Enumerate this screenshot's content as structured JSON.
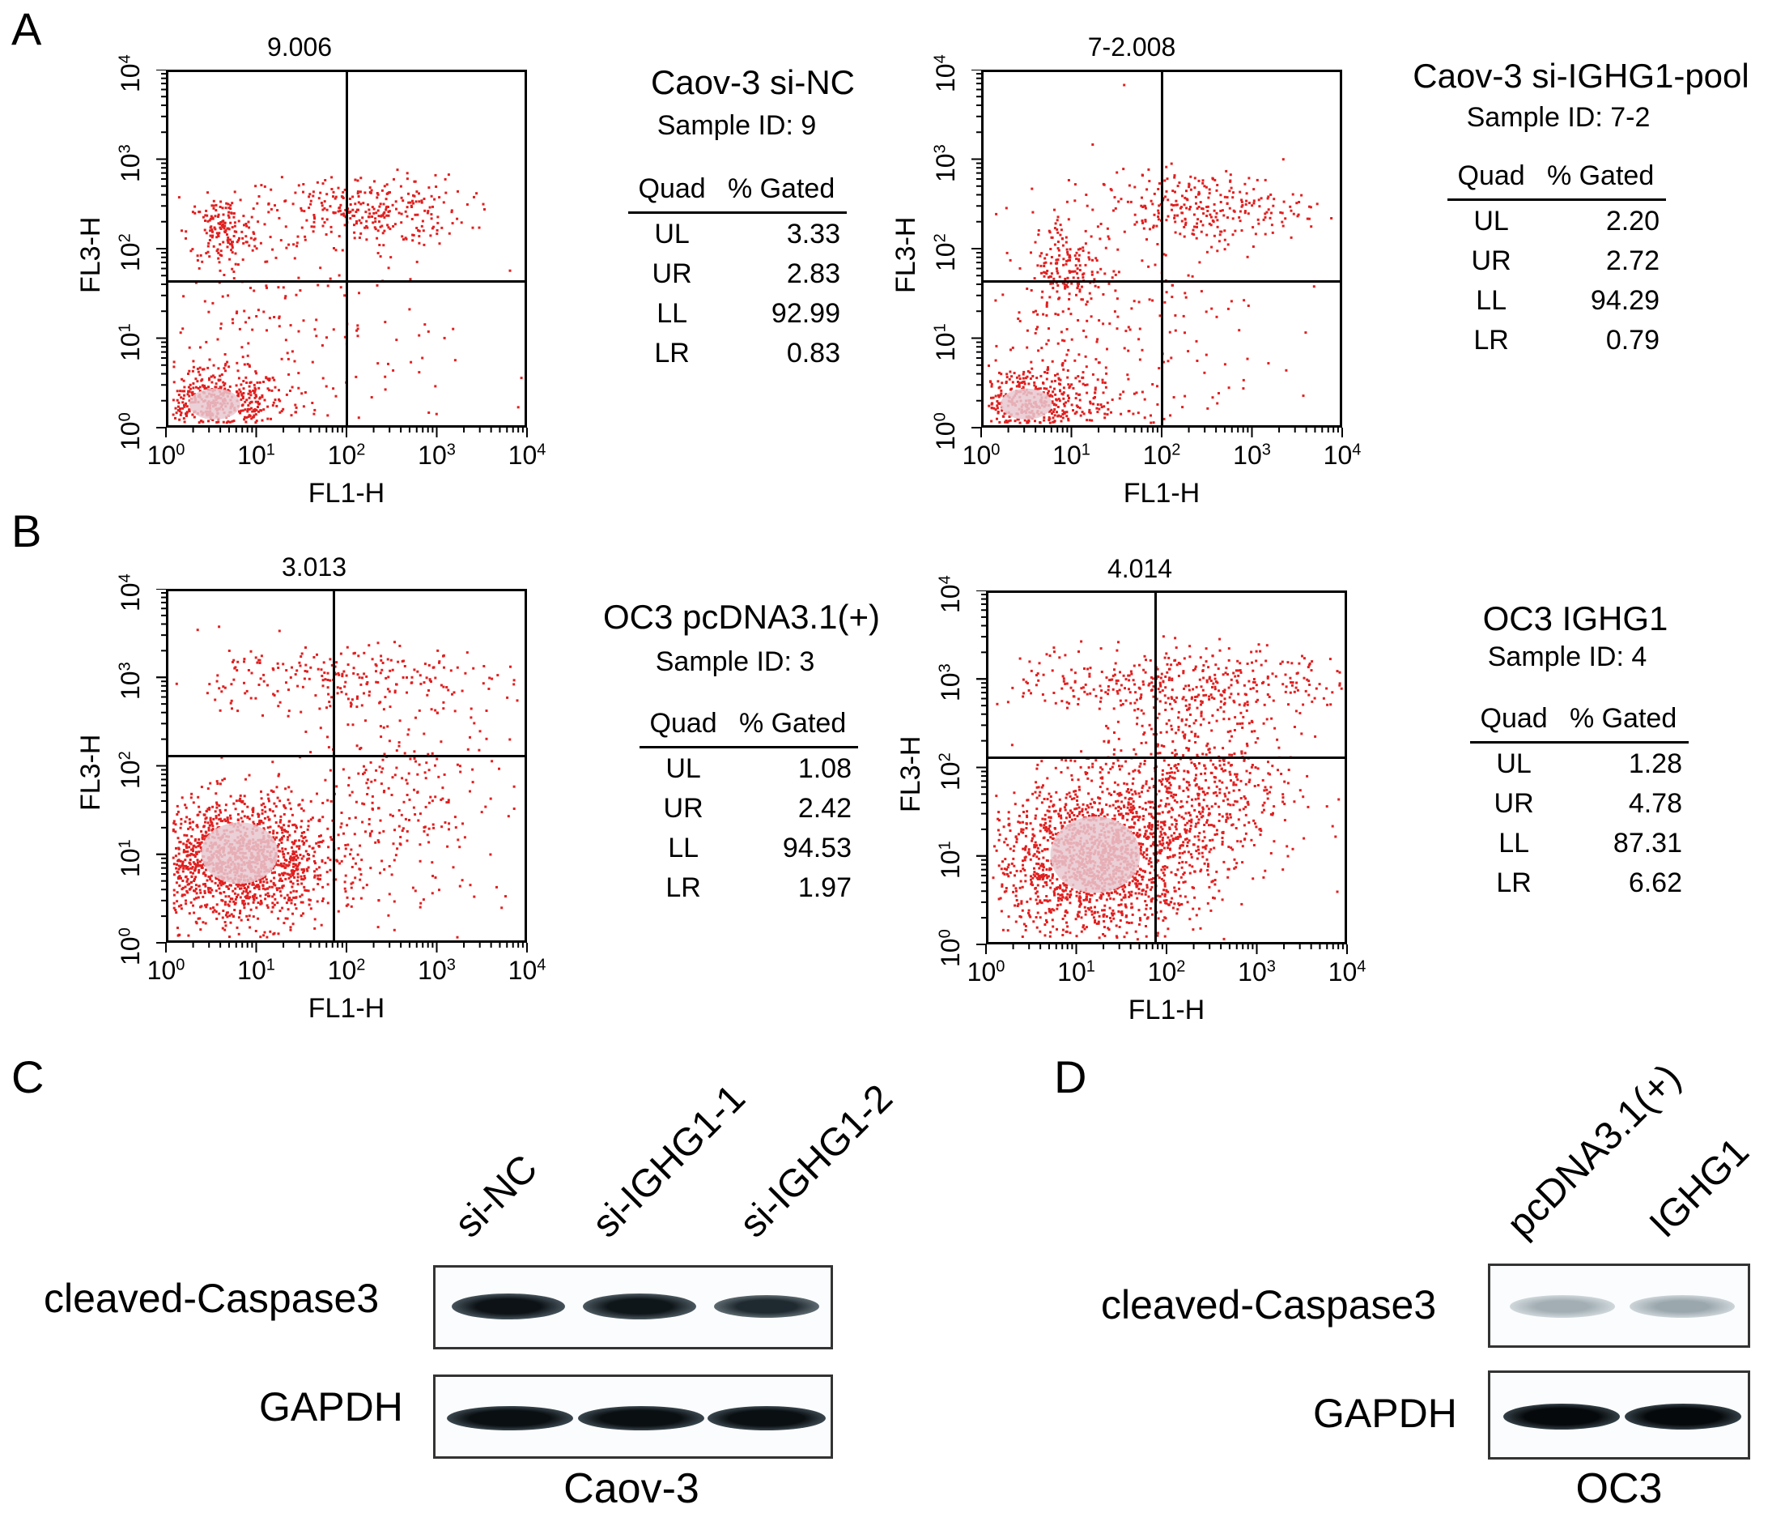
{
  "panels": {
    "A": {
      "letter": "A",
      "left": {
        "title": "9.006",
        "x_axis": "FL1-H",
        "y_axis": "FL3-H",
        "sample_name": "Caov-3 si-NC",
        "sample_id": "Sample ID: 9",
        "table_header": [
          "Quad",
          "% Gated"
        ],
        "rows": [
          {
            "quad": "UL",
            "value": "3.33"
          },
          {
            "quad": "UR",
            "value": "2.83"
          },
          {
            "quad": "LL",
            "value": "92.99"
          },
          {
            "quad": "LR",
            "value": "0.83"
          }
        ]
      },
      "right": {
        "title": "7-2.008",
        "x_axis": "FL1-H",
        "y_axis": "FL3-H",
        "sample_name": "Caov-3 si-IGHG1-pool",
        "sample_id": "Sample ID: 7-2",
        "table_header": [
          "Quad",
          "% Gated"
        ],
        "rows": [
          {
            "quad": "UL",
            "value": "2.20"
          },
          {
            "quad": "UR",
            "value": "2.72"
          },
          {
            "quad": "LL",
            "value": "94.29"
          },
          {
            "quad": "LR",
            "value": "0.79"
          }
        ]
      }
    },
    "B": {
      "letter": "B",
      "left": {
        "title": "3.013",
        "x_axis": "FL1-H",
        "y_axis": "FL3-H",
        "sample_name": "OC3 pcDNA3.1(+)",
        "sample_id": "Sample ID: 3",
        "table_header": [
          "Quad",
          "% Gated"
        ],
        "rows": [
          {
            "quad": "UL",
            "value": "1.08"
          },
          {
            "quad": "UR",
            "value": "2.42"
          },
          {
            "quad": "LL",
            "value": "94.53"
          },
          {
            "quad": "LR",
            "value": "1.97"
          }
        ]
      },
      "right": {
        "title": "4.014",
        "x_axis": "FL1-H",
        "y_axis": "FL3-H",
        "sample_name": "OC3 IGHG1",
        "sample_id": "Sample ID: 4",
        "table_header": [
          "Quad",
          "% Gated"
        ],
        "rows": [
          {
            "quad": "UL",
            "value": "1.28"
          },
          {
            "quad": "UR",
            "value": "4.78"
          },
          {
            "quad": "LL",
            "value": "87.31"
          },
          {
            "quad": "LR",
            "value": "6.62"
          }
        ]
      }
    },
    "C": {
      "letter": "C",
      "lanes": [
        "si-NC",
        "si-IGHG1-1",
        "si-IGHG1-2"
      ],
      "rows": [
        "cleaved-Caspase3",
        "GAPDH"
      ],
      "cell_line": "Caov-3"
    },
    "D": {
      "letter": "D",
      "lanes": [
        "pcDNA3.1(+)",
        "IGHG1"
      ],
      "rows": [
        "cleaved-Caspase3",
        "GAPDH"
      ],
      "cell_line": "OC3"
    }
  },
  "tick_base": "10",
  "tick_exponents": [
    "0",
    "1",
    "2",
    "3",
    "4"
  ],
  "colors": {
    "dot": "#e02020",
    "dense_core": "#e8c8d0",
    "axis": "#000000"
  }
}
